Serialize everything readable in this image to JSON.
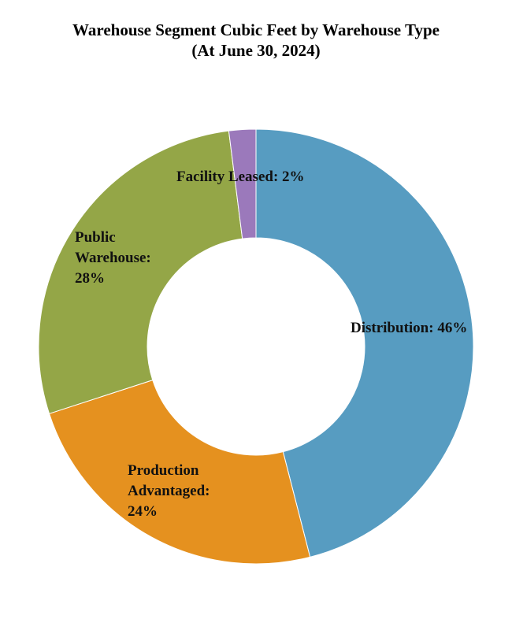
{
  "chart_data": {
    "type": "pie",
    "title": "Warehouse Segment Cubic Feet by Warehouse Type",
    "subtitle": "(At June 30, 2024)",
    "slices": [
      {
        "name": "Distribution",
        "value": 46,
        "value_label": "46%",
        "color": "#579CC1",
        "label_lines": [
          "Distribution: 46%"
        ]
      },
      {
        "name": "Production Advantaged",
        "value": 24,
        "value_label": "24%",
        "color": "#E5911F",
        "label_lines": [
          "Production",
          "Advantaged:",
          "24%"
        ]
      },
      {
        "name": "Public Warehouse",
        "value": 28,
        "value_label": "28%",
        "color": "#94A647",
        "label_lines": [
          "Public",
          "Warehouse:",
          "28%"
        ]
      },
      {
        "name": "Facility Leased",
        "value": 2,
        "value_label": "2%",
        "color": "#9B79BB",
        "label_lines": [
          "Facility Leased: 2%"
        ]
      }
    ],
    "legend": "none",
    "hole": true
  }
}
